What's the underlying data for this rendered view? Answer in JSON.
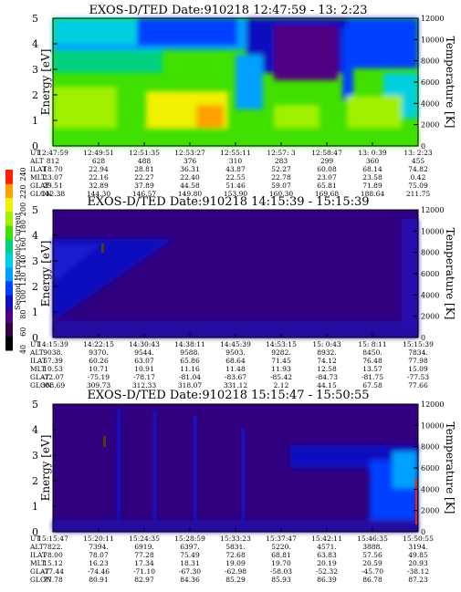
{
  "chart_data": [
    {
      "type": "heatmap",
      "title": "EXOS-D/TED  Date:910218  12:47:59 - 13: 2:23",
      "ylabel": "Energy [eV]",
      "y2label": "Temperature [K]",
      "ylim": [
        0,
        5
      ],
      "y2lim": [
        0,
        12000
      ],
      "yticks": [
        "0",
        "1",
        "2",
        "3",
        "4",
        "5"
      ],
      "y2ticks": [
        "0",
        "2000",
        "4000",
        "6000",
        "8000",
        "10000",
        "12000"
      ],
      "ephemeris": [
        {
          "label": "UT",
          "values": [
            "12:47:59",
            "12:49:51",
            "12:51:35",
            "12:53:27",
            "12:55:11",
            "12:57: 3",
            "12:58:47",
            "13: 0:39",
            "13: 2:23"
          ]
        },
        {
          "label": "ALT",
          "values": [
            "812",
            "628",
            "488",
            "376",
            "310",
            "283",
            "299",
            "360",
            "455"
          ]
        },
        {
          "label": "ILAT",
          "values": [
            "18.70",
            "22.94",
            "28.81",
            "36.31",
            "43.87",
            "52.27",
            "60.08",
            "68.14",
            "74.82"
          ]
        },
        {
          "label": "MLT",
          "values": [
            "23.07",
            "22.16",
            "22.27",
            "22.40",
            "22.55",
            "22.78",
            "23.07",
            "23.58",
            "0.42"
          ]
        },
        {
          "label": "GLAT",
          "values": [
            "29.51",
            "32.89",
            "37.89",
            "44.58",
            "51.46",
            "59.07",
            "65.81",
            "71.89",
            "75.09"
          ]
        },
        {
          "label": "GLON",
          "values": [
            "142.38",
            "144.30",
            "146.57",
            "149.80",
            "153.90",
            "160.30",
            "169.68",
            "188.64",
            "211.75"
          ]
        }
      ]
    },
    {
      "type": "heatmap",
      "title": "EXOS-D/TED  Date:910218  14:15:39 - 15:15:39",
      "ylabel": "Energy [eV]",
      "y2label": "Temperature [K]",
      "ylim": [
        0,
        5
      ],
      "y2lim": [
        0,
        12000
      ],
      "yticks": [
        "0",
        "1",
        "2",
        "3",
        "4",
        "5"
      ],
      "y2ticks": [
        "0",
        "2000",
        "4000",
        "6000",
        "8000",
        "10000",
        "12000"
      ],
      "ephemeris": [
        {
          "label": "UT",
          "values": [
            "14:15:39",
            "14:22:15",
            "14:30:43",
            "14:38:11",
            "14:45:39",
            "14:53:15",
            "15: 0:43",
            "15: 8:11",
            "15:15:39"
          ]
        },
        {
          "label": "ALT",
          "values": [
            "9038.",
            "9370.",
            "9544.",
            "9588.",
            "9503.",
            "9282.",
            "8932.",
            "8450.",
            "7834."
          ]
        },
        {
          "label": "ILAT",
          "values": [
            "57.39",
            "60.26",
            "63.07",
            "65.86",
            "68.64",
            "71.45",
            "74.12",
            "76.48",
            "77.98"
          ]
        },
        {
          "label": "MLT",
          "values": [
            "10.53",
            "10.71",
            "10.91",
            "11.16",
            "11.48",
            "11.93",
            "12.58",
            "13.57",
            "15.09"
          ]
        },
        {
          "label": "GLAT",
          "values": [
            "-72.07",
            "-75.19",
            "-78.17",
            "-81.04",
            "-83.67",
            "-85.42",
            "-84.73",
            "-81.75",
            "-77.53"
          ]
        },
        {
          "label": "GLON",
          "values": [
            "308.69",
            "309.73",
            "312.33",
            "318.07",
            "331.12",
            "2.12",
            "44.15",
            "67.58",
            "77.66"
          ]
        }
      ]
    },
    {
      "type": "heatmap",
      "title": "EXOS-D/TED  Date:910218  15:15:47 - 15:50:55",
      "ylabel": "Energy [eV]",
      "y2label": "Temperature [K]",
      "ylim": [
        0,
        5
      ],
      "y2lim": [
        0,
        12000
      ],
      "yticks": [
        "0",
        "1",
        "2",
        "3",
        "4",
        "5"
      ],
      "y2ticks": [
        "0",
        "2000",
        "4000",
        "6000",
        "8000",
        "10000",
        "12000"
      ],
      "ephemeris": [
        {
          "label": "UT",
          "values": [
            "15:15:47",
            "15:20:11",
            "15:24:35",
            "15:28:59",
            "15:33:23",
            "15:37:47",
            "15:42:11",
            "15:46:35",
            "15:50:55"
          ]
        },
        {
          "label": "ALT",
          "values": [
            "7822.",
            "7394.",
            "6919.",
            "6397.",
            "5831.",
            "5220.",
            "4571.",
            "3888.",
            "3194."
          ]
        },
        {
          "label": "ILAT",
          "values": [
            "78.00",
            "78.07",
            "77.28",
            "75.49",
            "72.68",
            "68.81",
            "63.83",
            "57.56",
            "49.85"
          ]
        },
        {
          "label": "MLT",
          "values": [
            "15.12",
            "16.23",
            "17.34",
            "18.31",
            "19.09",
            "19.70",
            "20.19",
            "20.59",
            "20.93"
          ]
        },
        {
          "label": "GLAT",
          "values": [
            "-77.44",
            "-74.46",
            "-71.10",
            "-67.30",
            "-62.98",
            "-58.03",
            "-52.32",
            "-45.70",
            "-38.12"
          ]
        },
        {
          "label": "GLON",
          "values": [
            "77.78",
            "80.91",
            "82.97",
            "84.36",
            "85.29",
            "85.93",
            "86.39",
            "86.78",
            "87.23"
          ]
        }
      ]
    }
  ],
  "colorbar": {
    "label": "Second Harmonic Current",
    "ticks": [
      "40",
      "60",
      "80",
      "100",
      "120",
      "140",
      "160",
      "180",
      "200",
      "220",
      "240"
    ],
    "colors": [
      "#000000",
      "#300040",
      "#500080",
      "#1010c0",
      "#0040ff",
      "#00a0ff",
      "#00d0e0",
      "#00d080",
      "#40e000",
      "#a0f000",
      "#f0f000",
      "#ffa000",
      "#ff2000"
    ]
  }
}
